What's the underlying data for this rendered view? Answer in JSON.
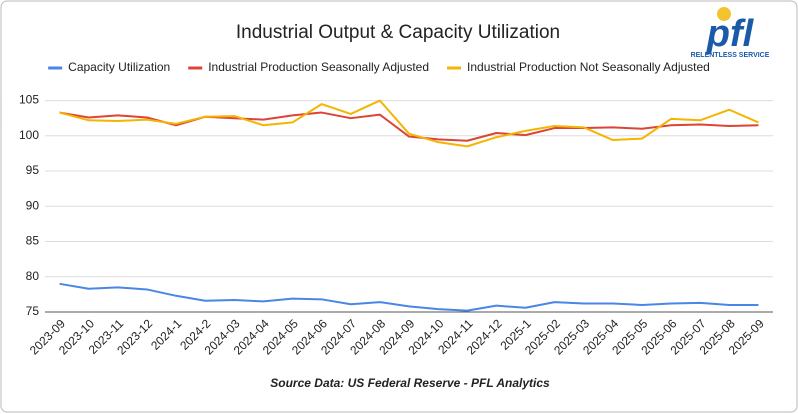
{
  "chart_data": {
    "type": "line",
    "title": "Industrial Output & Capacity Utilization",
    "source": "Source Data: US Federal Reserve - PFL Analytics",
    "categories": [
      "2023-09",
      "2023-10",
      "2023-11",
      "2023-12",
      "2024-1",
      "2024-2",
      "2024-03",
      "2024-04",
      "2024-05",
      "2024-06",
      "2024-07",
      "2024-08",
      "2024-09",
      "2024-10",
      "2024-11",
      "2024-12",
      "2025-1",
      "2025-02",
      "2025-03",
      "2025-04",
      "2025-05",
      "2025-06",
      "2025-07",
      "2025-08",
      "2025-09"
    ],
    "series": [
      {
        "name": "Capacity Utilization",
        "color": "#4a86e8",
        "values": [
          79.0,
          78.3,
          78.5,
          78.2,
          77.3,
          76.6,
          76.7,
          76.5,
          76.9,
          76.8,
          76.1,
          76.4,
          75.8,
          75.4,
          75.2,
          75.9,
          75.6,
          76.4,
          76.2,
          76.2,
          76.0,
          76.2,
          76.3,
          76.0,
          76.0
        ]
      },
      {
        "name": "Industrial Production Seasonally Adjusted",
        "color": "#db4437",
        "values": [
          103.3,
          102.6,
          102.9,
          102.6,
          101.5,
          102.7,
          102.5,
          102.3,
          102.9,
          103.3,
          102.5,
          103.0,
          99.9,
          99.5,
          99.3,
          100.4,
          100.1,
          101.1,
          101.1,
          101.2,
          101.0,
          101.5,
          101.6,
          101.4,
          101.5
        ]
      },
      {
        "name": "Industrial Production Not Seasonally Adjusted",
        "color": "#f4b400",
        "values": [
          103.3,
          102.2,
          102.1,
          102.3,
          101.7,
          102.7,
          102.8,
          101.5,
          101.9,
          104.5,
          103.1,
          105.0,
          100.3,
          99.1,
          98.5,
          99.8,
          100.7,
          101.4,
          101.2,
          99.4,
          99.6,
          102.4,
          102.2,
          103.7,
          101.9
        ]
      }
    ],
    "ylim": [
      75,
      106.5
    ],
    "yticks": [
      75,
      80,
      85,
      90,
      95,
      100,
      105
    ],
    "grid": true
  },
  "logo": {
    "text": "pfl",
    "tagline": "RELENTLESS SERVICE"
  }
}
